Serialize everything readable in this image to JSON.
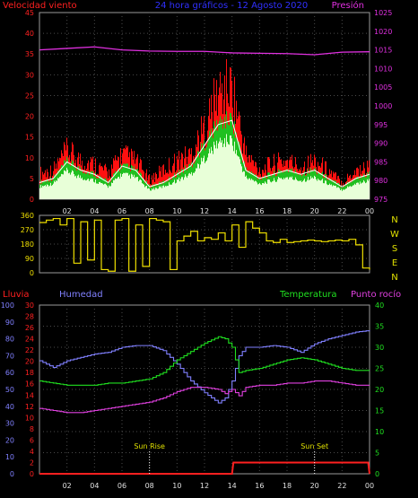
{
  "colors": {
    "background": "#000000",
    "frame": "#9a9a9a",
    "grid": "#4a4a4a",
    "wind_avg": "#ffffff",
    "wind_title": "#ff2020",
    "wind_max": "#ff1010",
    "wind_mid": "#20c020",
    "wind_min": "#e8ffd8",
    "title": "#3030ff",
    "pressure": "#e030e0",
    "direction": "#f0e000",
    "rain": "#ff2020",
    "humidity": "#8080ff",
    "temperature": "#20e020",
    "dewpoint": "#e040e0",
    "tick_text": "#e0e0e0",
    "direction_letters": "#e0e000",
    "sun_text": "#e0e000"
  },
  "chart_data": [
    {
      "type": "area",
      "title": "24 hora gráficos - 12 Agosto 2020",
      "left_label": "Velocidad viento",
      "right_label": "Presión",
      "x_ticks": [
        "02",
        "04",
        "06",
        "08",
        "10",
        "12",
        "14",
        "16",
        "18",
        "20",
        "22",
        "00"
      ],
      "xlim": [
        0,
        24
      ],
      "ylim_left": [
        0,
        45
      ],
      "ylim_right": [
        975,
        1025
      ],
      "y_ticks_left": [
        0,
        5,
        10,
        15,
        20,
        25,
        30,
        35,
        40,
        45
      ],
      "y_ticks_right": [
        975,
        980,
        985,
        990,
        995,
        1000,
        1005,
        1010,
        1015,
        1020,
        1025
      ],
      "grid": true,
      "wind_max": {
        "hours": [
          0,
          1,
          2,
          3,
          4,
          5,
          6,
          7,
          8,
          9,
          10,
          11,
          12,
          13,
          14,
          15,
          16,
          17,
          18,
          19,
          20,
          21,
          22,
          23,
          24
        ],
        "values": [
          8,
          9,
          15,
          12,
          11,
          8,
          14,
          12,
          6,
          9,
          12,
          14,
          22,
          33,
          35,
          14,
          9,
          11,
          12,
          10,
          12,
          9,
          5,
          9,
          10
        ]
      },
      "wind_avg": {
        "hours": [
          0,
          1,
          2,
          3,
          4,
          5,
          6,
          7,
          8,
          9,
          10,
          11,
          12,
          13,
          14,
          15,
          16,
          17,
          18,
          19,
          20,
          21,
          22,
          23,
          24
        ],
        "values": [
          4,
          5,
          9,
          7,
          6,
          4,
          8,
          7,
          3,
          4,
          6,
          8,
          13,
          18,
          19,
          7,
          5,
          6,
          7,
          6,
          7,
          5,
          3,
          5,
          6
        ]
      },
      "pressure": {
        "hours": [
          0,
          2,
          4,
          6,
          8,
          10,
          12,
          14,
          16,
          18,
          20,
          22,
          24
        ],
        "values": [
          1015,
          1015.4,
          1015.8,
          1015.0,
          1014.7,
          1014.6,
          1014.6,
          1014.2,
          1014.1,
          1014.0,
          1013.7,
          1014.4,
          1014.5
        ]
      }
    },
    {
      "type": "line",
      "series_name": "Dirección",
      "ylim": [
        0,
        360
      ],
      "y_ticks": [
        0,
        90,
        180,
        270,
        360
      ],
      "direction_letters": [
        "N",
        "W",
        "S",
        "E",
        "N"
      ],
      "x_ticks": [
        "02",
        "04",
        "06",
        "08",
        "10",
        "12",
        "14",
        "16",
        "18",
        "20",
        "22",
        "00"
      ],
      "hours": [
        0,
        0.5,
        1.0,
        1.5,
        2.0,
        2.5,
        3.0,
        3.5,
        4.0,
        4.5,
        5.0,
        5.5,
        6.0,
        6.5,
        7.0,
        7.5,
        8.0,
        8.5,
        9.0,
        9.5,
        10.0,
        10.5,
        11.0,
        11.5,
        12.0,
        12.5,
        13.0,
        13.5,
        14.0,
        14.5,
        15.0,
        15.5,
        16.0,
        16.5,
        17.0,
        17.5,
        18.0,
        18.5,
        19.0,
        19.5,
        20.0,
        20.5,
        21.0,
        21.5,
        22.0,
        22.5,
        23.0,
        23.5,
        24.0
      ],
      "values": [
        315,
        330,
        340,
        300,
        340,
        60,
        320,
        80,
        330,
        20,
        10,
        330,
        340,
        10,
        300,
        40,
        340,
        330,
        320,
        20,
        200,
        230,
        260,
        200,
        220,
        210,
        250,
        200,
        300,
        160,
        320,
        280,
        250,
        200,
        190,
        210,
        190,
        195,
        200,
        205,
        200,
        195,
        200,
        205,
        200,
        210,
        175,
        30,
        20
      ]
    },
    {
      "type": "line",
      "left_labels": [
        "Lluvia",
        "Humedad"
      ],
      "right_labels": [
        "Temperatura",
        "Punto rocío"
      ],
      "x_ticks": [
        "02",
        "04",
        "06",
        "08",
        "10",
        "12",
        "14",
        "16",
        "18",
        "20",
        "22",
        "00"
      ],
      "humidity_ticks": [
        0,
        10,
        20,
        30,
        40,
        50,
        60,
        70,
        80,
        90,
        100
      ],
      "rain_ticks": [
        0,
        2,
        4,
        6,
        8,
        10,
        12,
        14,
        16,
        18,
        20,
        22,
        24,
        26,
        28,
        30
      ],
      "temp_ticks": [
        0,
        5,
        10,
        15,
        20,
        25,
        30,
        35,
        40
      ],
      "ylim_humidity": [
        0,
        100
      ],
      "ylim_temp": [
        0,
        40
      ],
      "annotations": [
        {
          "text": "Sun Rise",
          "hour": 8.0
        },
        {
          "text": "Sun Set",
          "hour": 20.0
        }
      ],
      "series": [
        {
          "name": "Humedad",
          "hours": [
            0,
            1,
            2,
            3,
            4,
            5,
            6,
            7,
            8,
            9,
            10,
            11,
            12,
            13,
            13.5,
            14,
            14.5,
            15,
            16,
            17,
            18,
            19,
            20,
            21,
            22,
            23,
            24
          ],
          "values": [
            67,
            63,
            67,
            69,
            71,
            72,
            75,
            76,
            76,
            73,
            65,
            55,
            48,
            42,
            45,
            55,
            70,
            75,
            75,
            76,
            75,
            72,
            77,
            80,
            82,
            84,
            85
          ]
        },
        {
          "name": "Temperatura",
          "hours": [
            0,
            1,
            2,
            3,
            4,
            5,
            6,
            7,
            8,
            9,
            10,
            11,
            12,
            13,
            13.5,
            14,
            14.5,
            15,
            16,
            17,
            18,
            19,
            20,
            21,
            22,
            23,
            24
          ],
          "values": [
            22,
            21.5,
            21,
            21,
            21,
            21.5,
            21.5,
            22,
            22.5,
            24,
            27,
            29,
            31,
            32.5,
            32,
            30,
            24,
            24.5,
            25,
            26,
            27,
            27.5,
            27,
            26,
            25,
            24.5,
            24.5
          ]
        },
        {
          "name": "Punto rocío",
          "hours": [
            0,
            1,
            2,
            3,
            4,
            5,
            6,
            7,
            8,
            9,
            10,
            11,
            12,
            13,
            13.5,
            14,
            14.5,
            15,
            16,
            17,
            18,
            19,
            20,
            21,
            22,
            23,
            24
          ],
          "values": [
            15.5,
            15,
            14.5,
            14.5,
            15,
            15.5,
            16,
            16.5,
            17,
            18,
            19.5,
            20.5,
            20.5,
            20,
            19,
            20,
            18.5,
            20.5,
            21,
            21,
            21.5,
            21.5,
            22,
            22,
            21.5,
            21,
            21
          ]
        },
        {
          "name": "Lluvia",
          "hours": [
            0,
            14.0,
            14.1,
            23.9,
            24
          ],
          "values": [
            0,
            0,
            2,
            2,
            0
          ]
        }
      ]
    }
  ]
}
